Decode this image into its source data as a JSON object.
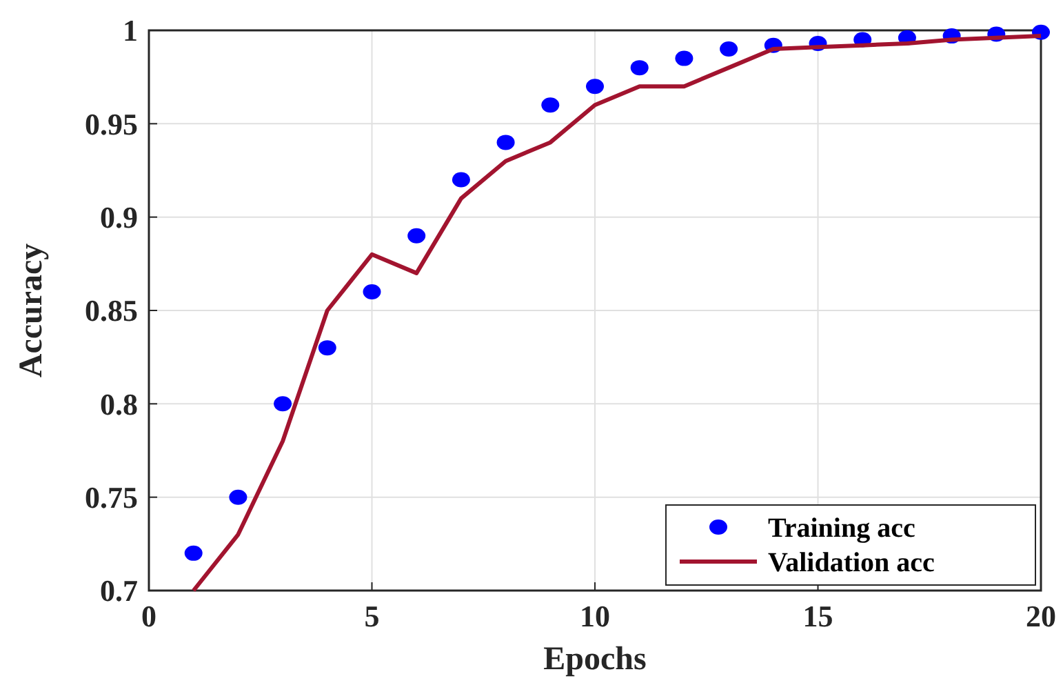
{
  "chart_data": {
    "type": "line",
    "xlabel": "Epochs",
    "ylabel": "Accuracy",
    "x": [
      1,
      2,
      3,
      4,
      5,
      6,
      7,
      8,
      9,
      10,
      11,
      12,
      13,
      14,
      15,
      16,
      17,
      18,
      19,
      20
    ],
    "series": [
      {
        "name": "Training acc",
        "type": "scatter",
        "marker": "circle",
        "color": "#0000ff",
        "values": [
          0.72,
          0.75,
          0.8,
          0.83,
          0.86,
          0.89,
          0.92,
          0.94,
          0.96,
          0.97,
          0.98,
          0.985,
          0.99,
          0.992,
          0.993,
          0.995,
          0.996,
          0.997,
          0.998,
          0.999
        ]
      },
      {
        "name": "Validation acc",
        "line_style": "solid",
        "color": "#a2142f",
        "values": [
          0.7,
          0.73,
          0.78,
          0.85,
          0.88,
          0.87,
          0.91,
          0.93,
          0.94,
          0.96,
          0.97,
          0.97,
          0.98,
          0.99,
          0.991,
          0.992,
          0.993,
          0.995,
          0.996,
          0.997
        ]
      }
    ],
    "xlim": [
      0,
      20
    ],
    "xticks": [
      0,
      5,
      10,
      15,
      20
    ],
    "ylim": [
      0.7,
      1
    ],
    "yticks": [
      0.7,
      0.75,
      0.8,
      0.85,
      0.9,
      0.95,
      1
    ],
    "grid": true,
    "legend": "bottom right"
  }
}
